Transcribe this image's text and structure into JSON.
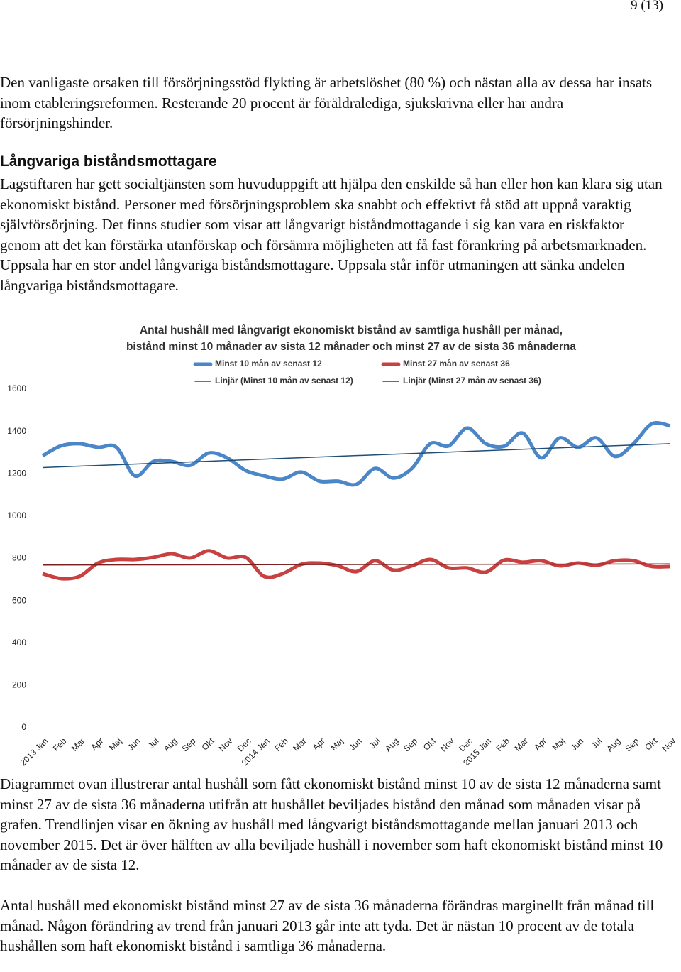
{
  "page_number": "9 (13)",
  "intro": "Den vanligaste orsaken till försörjningsstöd flykting är arbetslöshet (80 %) och nästan alla av dessa har insats inom etableringsreformen. Resterande 20 procent är föräldralediga, sjukskrivna eller har andra försörjningshinder.",
  "section": {
    "heading": "Långvariga biståndsmottagare",
    "body": "Lagstiftaren har gett socialtjänsten som huvuduppgift att hjälpa den enskilde så han eller hon kan klara sig utan ekonomiskt bistånd. Personer med försörjningsproblem ska snabbt och effektivt få stöd att uppnå varaktig självförsörjning. Det finns studier som visar att långvarigt biståndmottagande i sig kan vara en riskfaktor genom att det kan förstärka utanförskap och försämra möjligheten att få fast förankring på arbetsmarknaden. Uppsala har en stor andel långvariga biståndsmottagare. Uppsala står inför utmaningen att sänka andelen långvariga biståndsmottagare."
  },
  "chart_data": {
    "type": "line",
    "title": "Antal hushåll med långvarigt ekonomiskt bistånd av samtliga hushåll per månad,",
    "subtitle": "bistånd minst 10 månader av sista 12 månader och minst 27 av de sista 36 månaderna",
    "categories": [
      "2013 Jan",
      "Feb",
      "Mar",
      "Apr",
      "Maj",
      "Jun",
      "Jul",
      "Aug",
      "Sep",
      "Okt",
      "Nov",
      "Dec",
      "2014 Jan",
      "Feb",
      "Mar",
      "Apr",
      "Maj",
      "Jun",
      "Jul",
      "Aug",
      "Sep",
      "Okt",
      "Nov",
      "Dec",
      "2015 Jan",
      "Feb",
      "Mar",
      "Apr",
      "Maj",
      "Jun",
      "Jul",
      "Aug",
      "Sep",
      "Okt",
      "Nov"
    ],
    "series": [
      {
        "name": "Minst 10 mån av senast 12",
        "color": "#4a86c8",
        "values": [
          1285,
          1332,
          1342,
          1325,
          1325,
          1190,
          1258,
          1258,
          1240,
          1298,
          1275,
          1215,
          1190,
          1175,
          1208,
          1165,
          1165,
          1150,
          1225,
          1180,
          1225,
          1342,
          1332,
          1416,
          1342,
          1330,
          1392,
          1275,
          1369,
          1325,
          1369,
          1282,
          1342,
          1436,
          1426
        ]
      },
      {
        "name": "Minst 27 mån av senast 36",
        "color": "#c94040",
        "values": [
          728,
          705,
          715,
          778,
          795,
          795,
          805,
          822,
          802,
          836,
          802,
          805,
          715,
          728,
          772,
          778,
          765,
          738,
          789,
          745,
          765,
          795,
          755,
          755,
          735,
          792,
          782,
          789,
          765,
          778,
          768,
          789,
          789,
          762,
          762
        ]
      }
    ],
    "trendlines": [
      {
        "name": "Linjär (Minst 10 mån av senast 12)",
        "color": "#1f4e79",
        "of": 0
      },
      {
        "name": "Linjär (Minst 27 mån av senast 36)",
        "color": "#7a1f1f",
        "of": 1
      }
    ],
    "ylim": [
      0,
      1600
    ],
    "yticks": [
      0,
      200,
      400,
      600,
      800,
      1000,
      1200,
      1400,
      1600
    ],
    "grid": false,
    "legend": "top"
  },
  "after": [
    "Diagrammet ovan illustrerar antal hushåll som fått ekonomiskt bistånd minst 10 av de sista 12 månaderna samt minst 27 av de sista 36 månaderna utifrån att hushållet beviljades bistånd den månad som månaden visar på grafen. Trendlinjen visar en ökning av hushåll med långvarigt biståndsmottagande mellan januari 2013 och november 2015. Det är över hälften av alla beviljade hushåll i november som haft ekonomiskt bistånd minst 10 månader av de sista 12.",
    "Antal hushåll med ekonomiskt bistånd minst 27 av de sista 36 månaderna förändras marginellt från månad till månad. Någon förändring av trend från januari 2013 går inte att tyda. Det är nästan 10 procent av de totala hushållen som haft ekonomiskt bistånd i samtliga 36 månaderna."
  ]
}
